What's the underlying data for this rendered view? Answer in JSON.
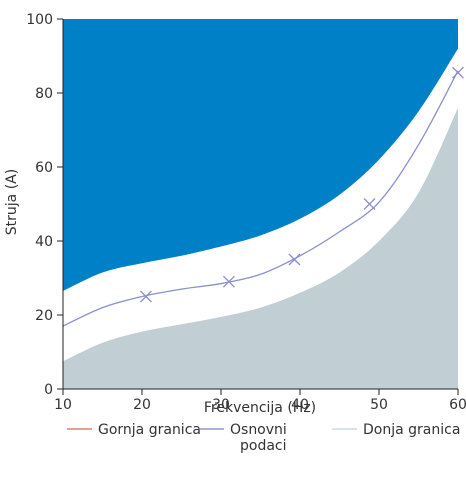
{
  "chart_data": {
    "type": "area",
    "title": "",
    "xlabel": "Frekvencija (Hz)",
    "ylabel": "Struja (A)",
    "xlim": [
      10,
      60
    ],
    "ylim": [
      0,
      100
    ],
    "xticks": [
      10,
      20,
      30,
      40,
      50,
      60
    ],
    "yticks": [
      0,
      20,
      40,
      60,
      80,
      100
    ],
    "grid": false,
    "legend_position": "bottom",
    "series": [
      {
        "name": "Gornja granica",
        "legend_color": "#d9694a",
        "fill_color": "#0080c6",
        "fill": "from curve up to top of plot",
        "x": [
          10,
          15,
          20,
          25,
          30,
          35,
          40,
          45,
          50,
          55,
          60
        ],
        "values": [
          26.5,
          31.5,
          34,
          36,
          38.5,
          41.5,
          46,
          52.5,
          62,
          75,
          92
        ]
      },
      {
        "name": "Osnovni podaci",
        "legend_color": "#7a7fc6",
        "line_color": "#8a8fd0",
        "marker": "x",
        "x": [
          10,
          15,
          20,
          25,
          30,
          35,
          40,
          45,
          50,
          55,
          60
        ],
        "values": [
          17,
          22,
          25,
          27,
          28.5,
          31,
          36,
          42.5,
          50.5,
          66,
          86
        ],
        "marker_x": [
          20.5,
          31,
          39.3,
          48.8,
          60
        ],
        "marker_values": [
          25,
          29,
          35,
          50,
          85.5
        ]
      },
      {
        "name": "Donja granica",
        "legend_color": "#c1d2da",
        "fill_color": "#c1ced4",
        "fill": "from curve down to axis",
        "x": [
          10,
          15,
          20,
          25,
          30,
          35,
          40,
          45,
          50,
          55,
          60
        ],
        "values": [
          7.5,
          12.5,
          15.5,
          17.5,
          19.5,
          22,
          26,
          31.5,
          40,
          53,
          76
        ]
      }
    ]
  }
}
